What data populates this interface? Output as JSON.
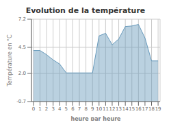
{
  "chart_data": {
    "type": "area",
    "title": "Evolution de la température",
    "x_label": "heure par heure",
    "y_label": "Température en °C",
    "x": [
      0,
      1,
      2,
      3,
      4,
      5,
      6,
      7,
      8,
      9,
      10,
      11,
      12,
      13,
      14,
      15,
      16,
      17,
      18,
      19
    ],
    "values": [
      4.2,
      4.2,
      3.8,
      3.3,
      2.9,
      2.05,
      2.05,
      2.05,
      2.05,
      2.05,
      5.6,
      5.85,
      4.75,
      5.3,
      6.5,
      6.55,
      6.7,
      5.4,
      3.2,
      3.2
    ],
    "color": "#6699bb",
    "xlim": [
      -0.3,
      19.3
    ],
    "xticks": [
      0,
      1,
      2,
      3,
      4,
      5,
      6,
      7,
      8,
      9,
      10,
      11,
      12,
      13,
      14,
      15,
      16,
      17,
      18,
      19
    ],
    "ylim": [
      -0.7,
      7.2
    ],
    "yticks": [
      -0.7,
      {
        "value": 2.0,
        "label": "2.0"
      },
      4.5,
      7.2
    ],
    "grid": true
  }
}
